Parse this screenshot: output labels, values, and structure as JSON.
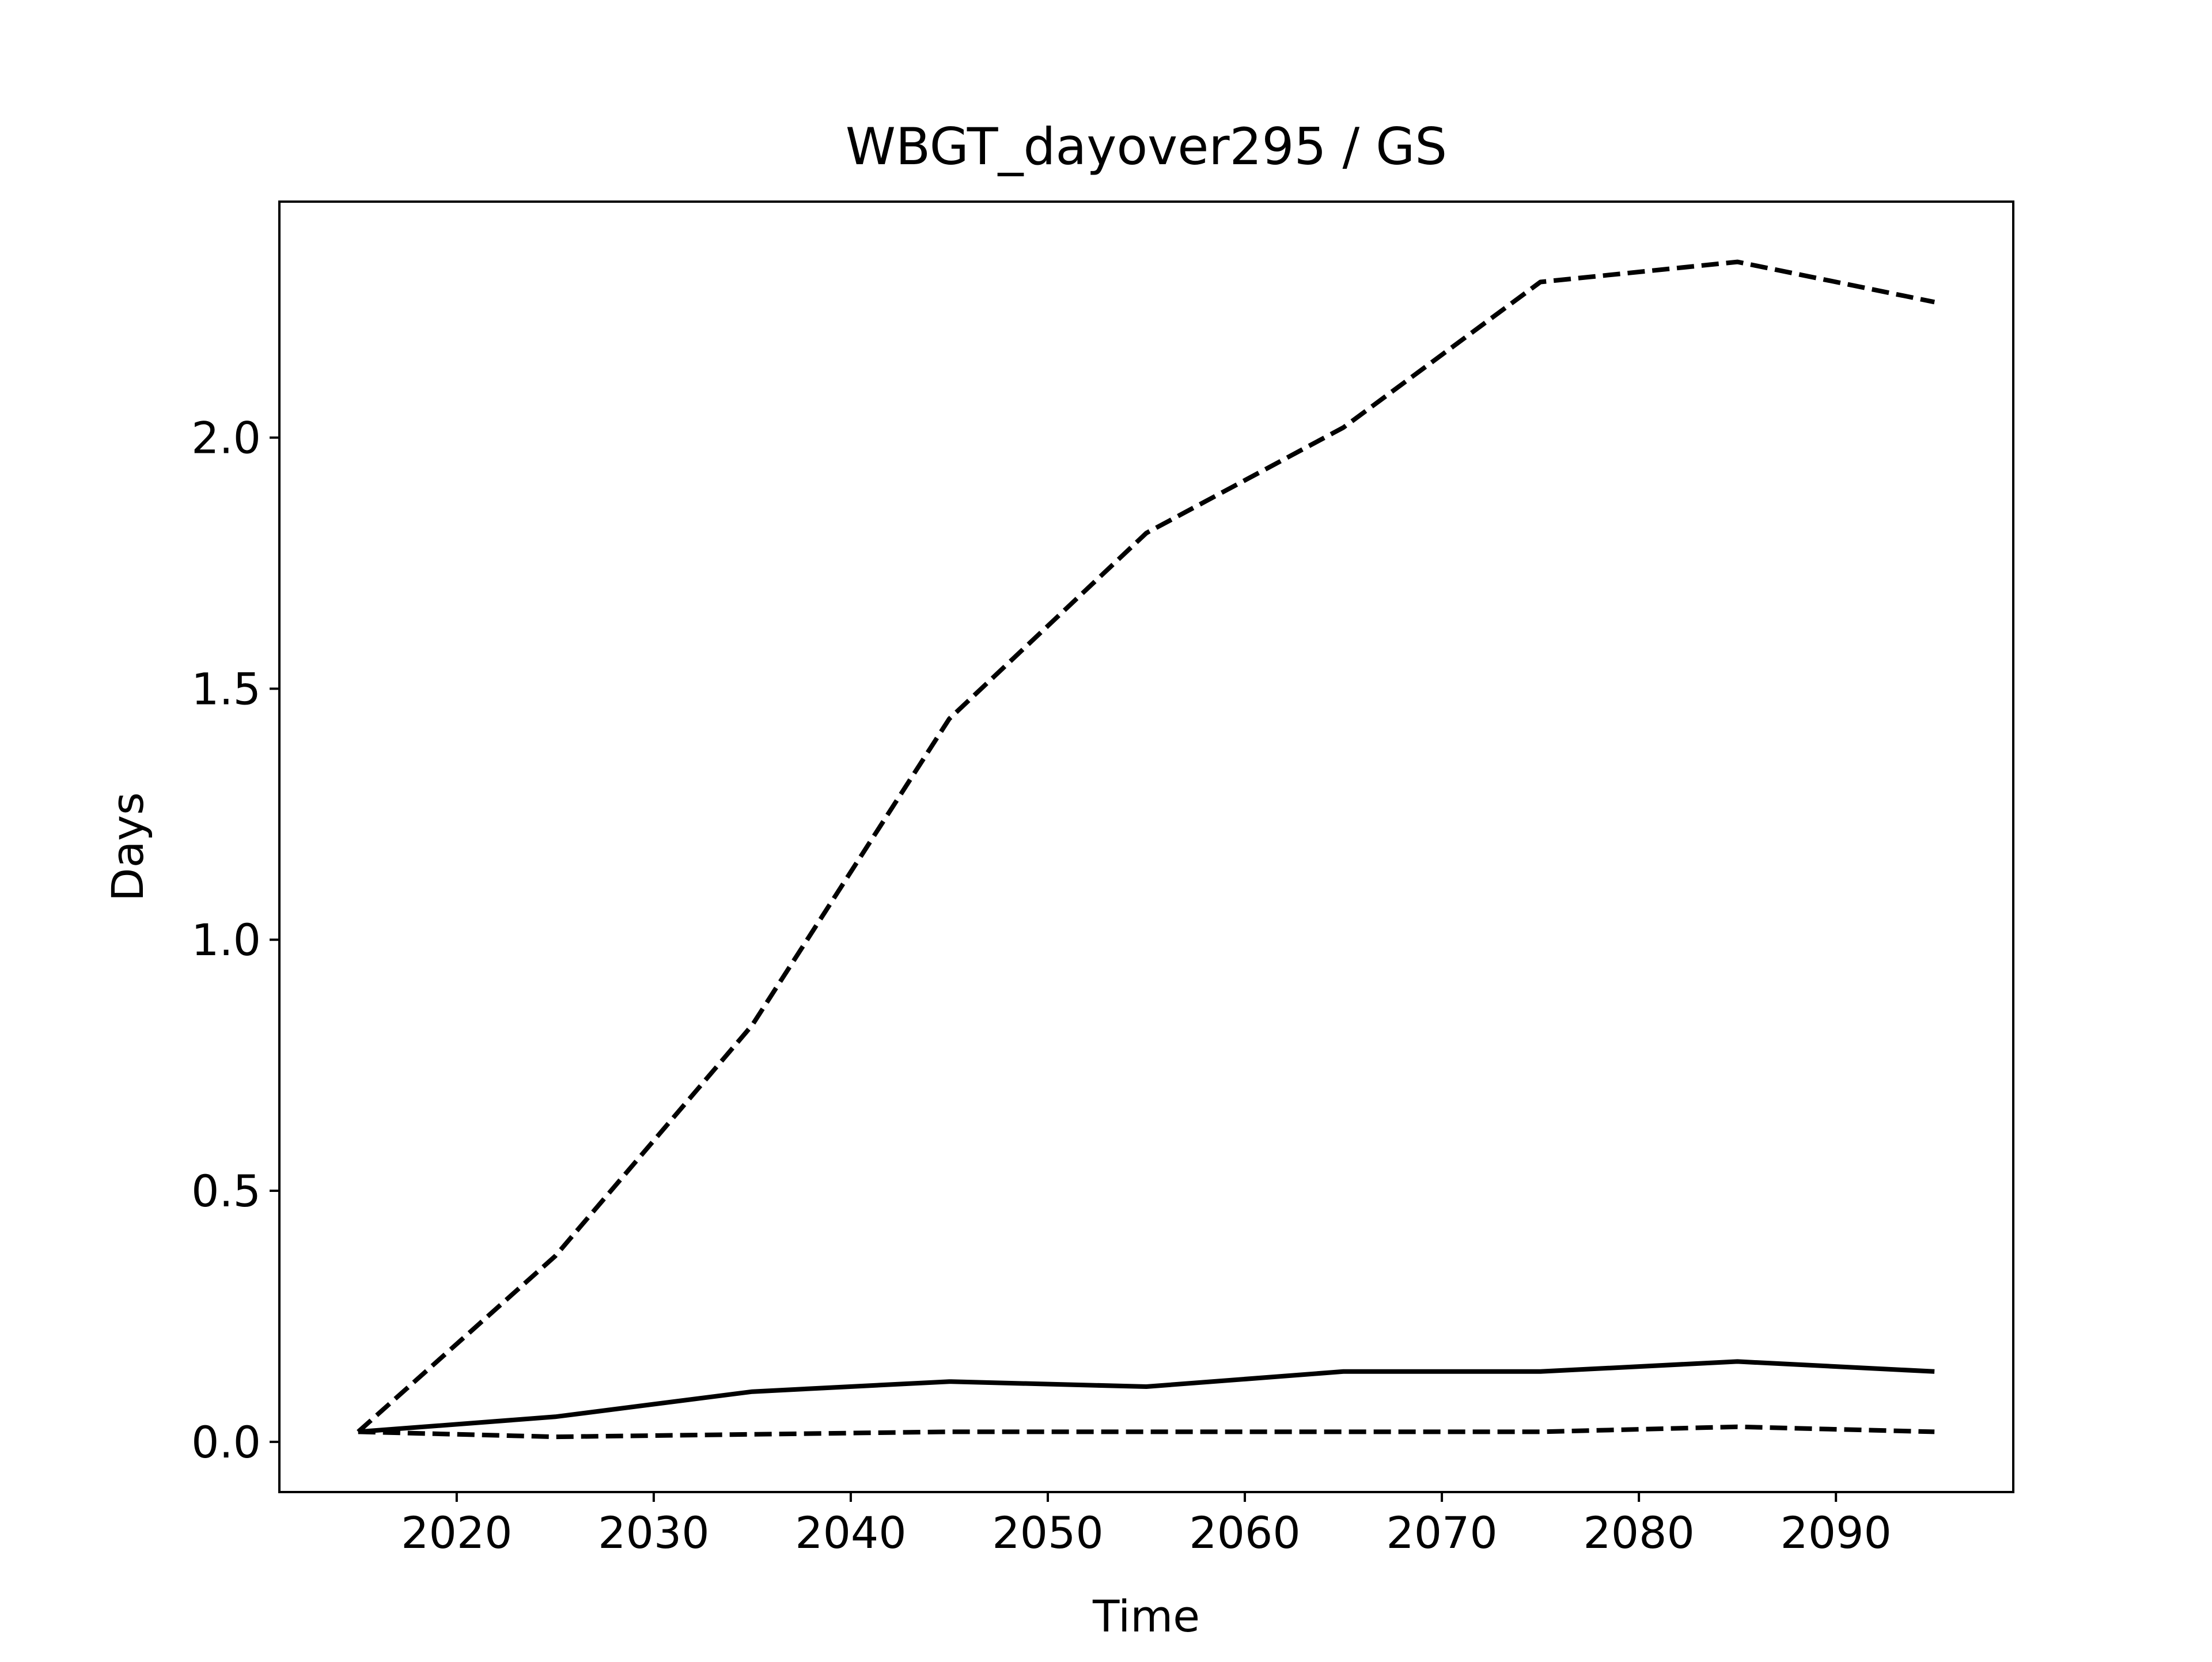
{
  "chart_data": {
    "type": "line",
    "title": "WBGT_dayover295 / GS",
    "xlabel": "Time",
    "ylabel": "Days",
    "xlim": [
      2011,
      2099
    ],
    "ylim": [
      -0.1,
      2.47
    ],
    "xticks": [
      2020,
      2030,
      2040,
      2050,
      2060,
      2070,
      2080,
      2090
    ],
    "yticks": [
      0.0,
      0.5,
      1.0,
      1.5,
      2.0
    ],
    "ytick_labels": [
      "0.0",
      "0.5",
      "1.0",
      "1.5",
      "2.0"
    ],
    "grid": false,
    "x": [
      2015,
      2025,
      2035,
      2045,
      2055,
      2065,
      2075,
      2085,
      2095
    ],
    "series": [
      {
        "style": "dashed",
        "color": "#000000",
        "values": [
          0.02,
          0.37,
          0.83,
          1.44,
          1.81,
          2.02,
          2.31,
          2.35,
          2.27
        ]
      },
      {
        "style": "solid",
        "color": "#000000",
        "values": [
          0.02,
          0.05,
          0.1,
          0.12,
          0.11,
          0.14,
          0.14,
          0.16,
          0.14
        ]
      },
      {
        "style": "dashed",
        "color": "#000000",
        "values": [
          0.02,
          0.01,
          0.015,
          0.02,
          0.02,
          0.02,
          0.02,
          0.03,
          0.02
        ]
      }
    ]
  }
}
